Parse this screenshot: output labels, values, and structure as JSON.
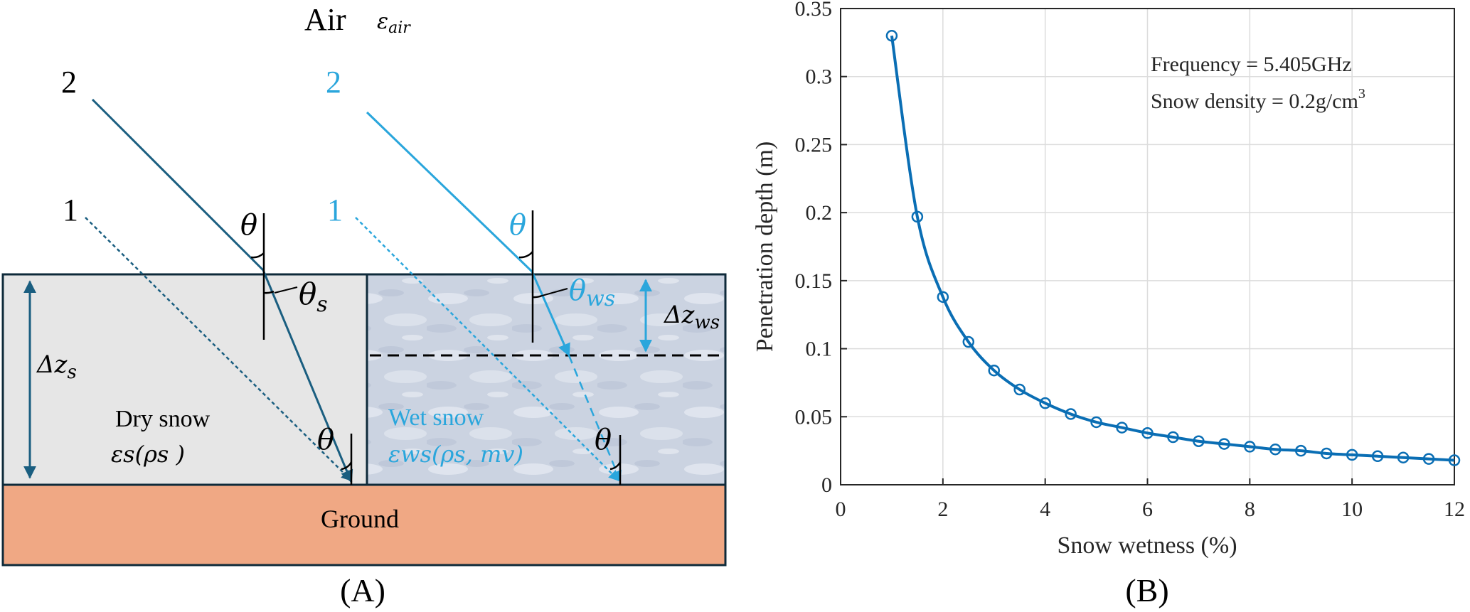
{
  "panel_a": {
    "label": "(A)",
    "air_label": "Air",
    "air_symbol": "ε",
    "air_subscript": "air",
    "ray_2_dry": "2",
    "ray_1_dry": "1",
    "ray_2_wet": "2",
    "ray_1_wet": "1",
    "theta": "θ",
    "theta_s": "θ",
    "theta_s_sub": "s",
    "theta_ws": "θ",
    "theta_ws_sub": "ws",
    "dz_s": "Δz",
    "dz_s_sub": "s",
    "dz_ws": "Δz",
    "dz_ws_sub": "ws",
    "dry_snow_label": "Dry snow",
    "dry_snow_permittivity": "εs(ρs )",
    "wet_snow_label": "Wet snow",
    "wet_snow_permittivity": "εws(ρs, mv)",
    "ground_label": "Ground",
    "colors": {
      "dark_ray": "#1a5e80",
      "light_ray": "#2aa6dc",
      "ground": "#f0a884",
      "dry_snow": "#e6e6e6",
      "wet_snow": "#c9d2e0",
      "outline": "#0e2a3a"
    }
  },
  "panel_b": {
    "label": "(B)",
    "annotation_frequency": "Frequency = 5.405GHz",
    "annotation_density": "Snow density = 0.2g/cm",
    "annotation_density_sup": "3"
  },
  "chart_data": {
    "type": "line",
    "xlabel": "Snow wetness (%)",
    "ylabel": "Penetration depth (m)",
    "xlim": [
      0,
      12
    ],
    "ylim": [
      0,
      0.35
    ],
    "xticks": [
      0,
      2,
      4,
      6,
      8,
      10,
      12
    ],
    "yticks": [
      0,
      0.05,
      0.1,
      0.15,
      0.2,
      0.25,
      0.3,
      0.35
    ],
    "xtick_labels": [
      "0",
      "2",
      "4",
      "6",
      "8",
      "10",
      "12"
    ],
    "ytick_labels": [
      "0",
      "0.05",
      "0.1",
      "0.15",
      "0.2",
      "0.25",
      "0.3",
      "0.35"
    ],
    "grid": true,
    "marker": "circle",
    "color": "#0a6eb4",
    "x": [
      1,
      1.5,
      2,
      2.5,
      3,
      3.5,
      4,
      4.5,
      5,
      5.5,
      6,
      6.5,
      7,
      7.5,
      8,
      8.5,
      9,
      9.5,
      10,
      10.5,
      11,
      11.5,
      12
    ],
    "y": [
      0.33,
      0.197,
      0.138,
      0.105,
      0.084,
      0.07,
      0.06,
      0.052,
      0.046,
      0.042,
      0.038,
      0.035,
      0.032,
      0.03,
      0.028,
      0.026,
      0.025,
      0.023,
      0.022,
      0.021,
      0.02,
      0.019,
      0.018
    ]
  }
}
